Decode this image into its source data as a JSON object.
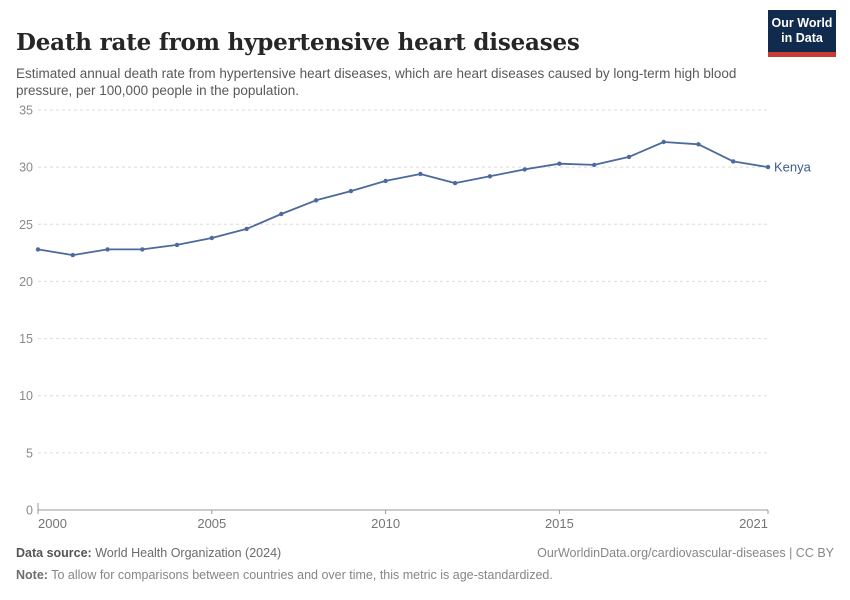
{
  "header": {
    "title": "Death rate from hypertensive heart diseases",
    "subtitle": "Estimated annual death rate from hypertensive heart diseases, which are heart diseases caused by long-term high blood pressure, per 100,000 people in the population.",
    "logo": {
      "line1": "Our World",
      "line2": "in Data"
    }
  },
  "chart_data": {
    "type": "line",
    "title": "Death rate from hypertensive heart diseases",
    "xlabel": "",
    "ylabel": "",
    "x": [
      2000,
      2001,
      2002,
      2003,
      2004,
      2005,
      2006,
      2007,
      2008,
      2009,
      2010,
      2011,
      2012,
      2013,
      2014,
      2015,
      2016,
      2017,
      2018,
      2019,
      2020,
      2021
    ],
    "series": [
      {
        "name": "Kenya",
        "values": [
          22.8,
          22.3,
          22.8,
          22.8,
          23.2,
          23.8,
          24.6,
          25.9,
          27.1,
          27.9,
          28.8,
          29.4,
          28.6,
          29.2,
          29.8,
          30.3,
          30.2,
          30.9,
          32.2,
          32.0,
          30.5,
          30.0
        ]
      }
    ],
    "xlim": [
      2000,
      2021
    ],
    "ylim": [
      0,
      35
    ],
    "xticks": [
      2000,
      2005,
      2010,
      2015,
      2021
    ],
    "yticks": [
      0,
      5,
      10,
      15,
      20,
      25,
      30,
      35
    ],
    "grid": true,
    "legend_position": "end-of-line",
    "entity_label": "Kenya"
  },
  "colors": {
    "line": "#4C6A9C",
    "entity_label": "#3D5C8F",
    "grid": "#DBDBDB",
    "axis": "#999999",
    "y_tick_text": "#8A8A8A",
    "x_tick_text": "#757575",
    "logo_bg": "#112B4E",
    "logo_red": "#C63D34"
  },
  "footer": {
    "source_label": "Data source:",
    "source_value": " World Health Organization (2024)",
    "link": "OurWorldinData.org/cardiovascular-diseases | CC BY",
    "note_label": "Note:",
    "note_value": " To allow for comparisons between countries and over time, this metric is age-standardized."
  }
}
